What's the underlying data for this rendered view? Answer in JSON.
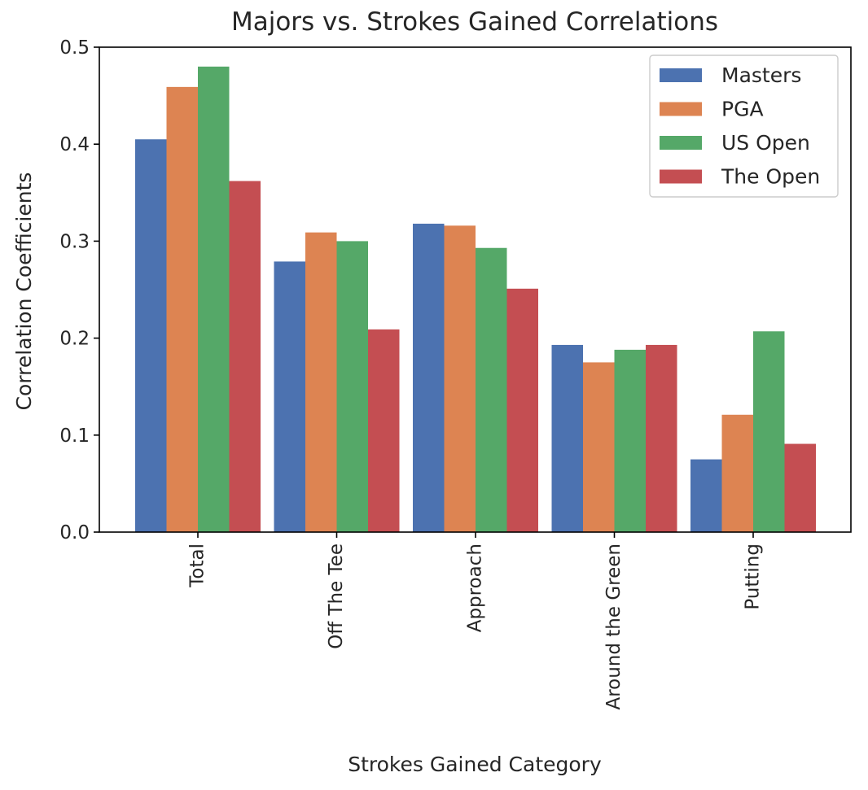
{
  "chart_data": {
    "type": "bar",
    "title": "Majors vs. Strokes Gained Correlations",
    "xlabel": "Strokes Gained Category",
    "ylabel": "Correlation Coefficients",
    "categories": [
      "Total",
      "Off The Tee",
      "Approach",
      "Around the Green",
      "Putting"
    ],
    "series": [
      {
        "name": "Masters",
        "color": "#4c72b0",
        "values": [
          0.405,
          0.279,
          0.318,
          0.193,
          0.075
        ]
      },
      {
        "name": "PGA",
        "color": "#dd8452",
        "values": [
          0.459,
          0.309,
          0.316,
          0.175,
          0.121
        ]
      },
      {
        "name": "US Open",
        "color": "#55a868",
        "values": [
          0.48,
          0.3,
          0.293,
          0.188,
          0.207
        ]
      },
      {
        "name": "The Open",
        "color": "#c44e52",
        "values": [
          0.362,
          0.209,
          0.251,
          0.193,
          0.091
        ]
      }
    ],
    "yticks": [
      "0.0",
      "0.1",
      "0.2",
      "0.3",
      "0.4",
      "0.5"
    ],
    "ylim": [
      0,
      0.5
    ],
    "grid": false,
    "legend_position": "top-right"
  }
}
